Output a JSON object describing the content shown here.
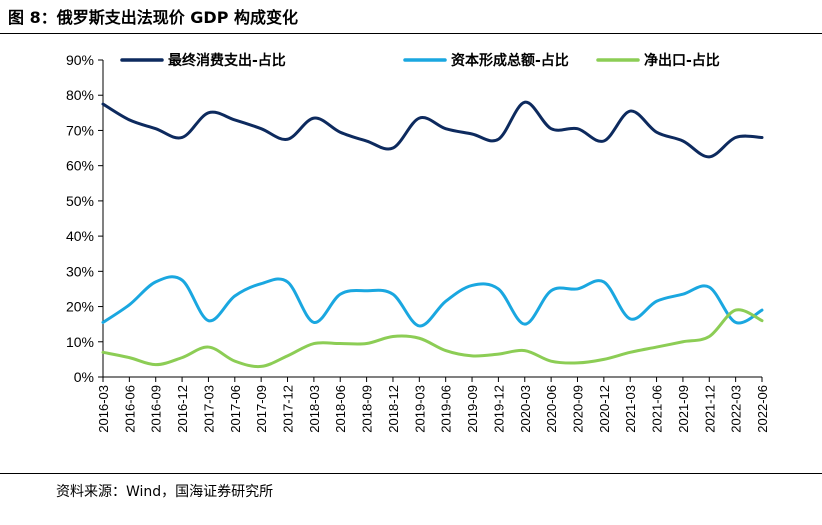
{
  "header": {
    "title": "图 8：俄罗斯支出法现价 GDP 构成变化"
  },
  "footer": {
    "source": "资料来源：Wind，国海证券研究所"
  },
  "colors": {
    "consumption": "#0d2a5e",
    "capital": "#1aa7e0",
    "netexport": "#8ccd55",
    "axis": "#000000"
  },
  "chart_data": {
    "type": "line",
    "title": "俄罗斯支出法现价 GDP 构成变化",
    "xlabel": "",
    "ylabel": "",
    "ylim": [
      0,
      90
    ],
    "y_ticks": [
      "0%",
      "10%",
      "20%",
      "30%",
      "40%",
      "50%",
      "60%",
      "70%",
      "80%",
      "90%"
    ],
    "legend_position": "top",
    "categories": [
      "2016-03",
      "2016-06",
      "2016-09",
      "2016-12",
      "2017-03",
      "2017-06",
      "2017-09",
      "2017-12",
      "2018-03",
      "2018-06",
      "2018-09",
      "2018-12",
      "2019-03",
      "2019-06",
      "2019-09",
      "2019-12",
      "2020-03",
      "2020-06",
      "2020-09",
      "2020-12",
      "2021-03",
      "2021-06",
      "2021-09",
      "2021-12",
      "2022-03",
      "2022-06"
    ],
    "series": [
      {
        "name": "最终消费支出-占比",
        "color_key": "consumption",
        "values": [
          77.5,
          73.0,
          70.5,
          68.0,
          75.0,
          73.0,
          70.5,
          67.5,
          73.5,
          69.5,
          67.0,
          65.0,
          73.5,
          70.5,
          69.0,
          67.5,
          78.0,
          70.5,
          70.5,
          67.0,
          75.5,
          69.5,
          67.0,
          62.5,
          68.0,
          68.0
        ]
      },
      {
        "name": "资本形成总额-占比",
        "color_key": "capital",
        "values": [
          15.5,
          20.5,
          27.0,
          27.5,
          16.0,
          23.0,
          26.5,
          27.0,
          15.5,
          23.5,
          24.5,
          23.5,
          14.5,
          21.5,
          26.0,
          25.0,
          15.0,
          24.5,
          25.0,
          27.0,
          16.5,
          21.5,
          23.5,
          25.5,
          15.5,
          19.0
        ]
      },
      {
        "name": "净出口-占比",
        "color_key": "netexport",
        "values": [
          7.0,
          5.5,
          3.5,
          5.5,
          8.5,
          4.5,
          3.0,
          6.0,
          9.5,
          9.5,
          9.5,
          11.5,
          11.0,
          7.5,
          6.0,
          6.5,
          7.5,
          4.5,
          4.0,
          5.0,
          7.0,
          8.5,
          10.0,
          11.5,
          19.0,
          16.0
        ]
      }
    ]
  }
}
